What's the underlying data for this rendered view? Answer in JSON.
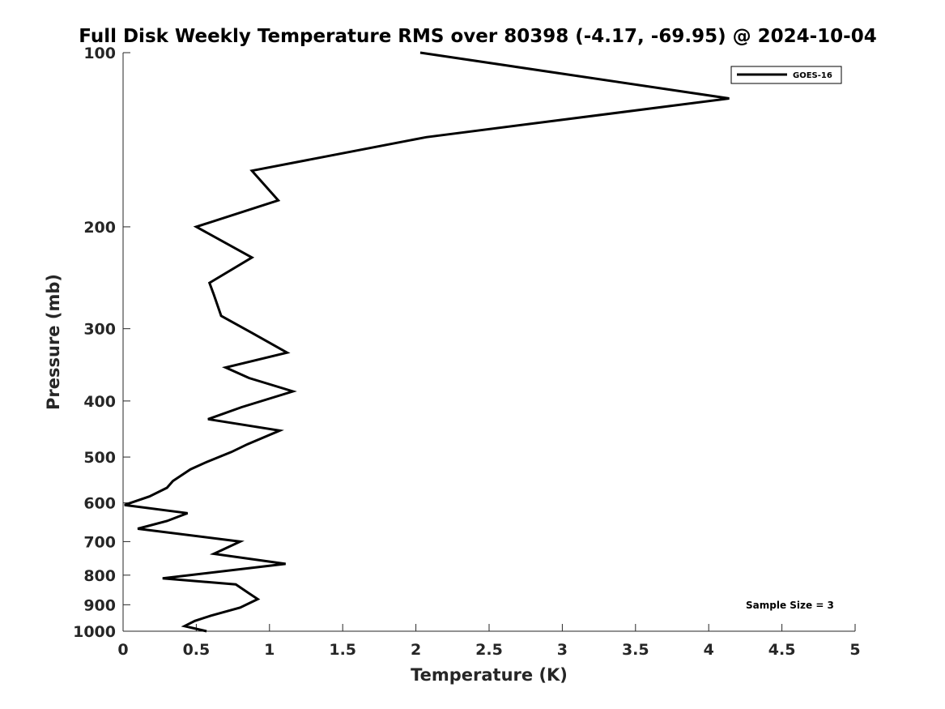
{
  "chart_data": {
    "type": "line",
    "title": "Full Disk Weekly Temperature RMS over 80398 (-4.17, -69.95) @ 2024-10-04",
    "xlabel": "Temperature (K)",
    "ylabel": "Pressure (mb)",
    "xlim": [
      0,
      5
    ],
    "ylim": [
      100,
      1000
    ],
    "y_scale": "log",
    "y_reversed": true,
    "x_ticks": [
      "0",
      "0.5",
      "1",
      "1.5",
      "2",
      "2.5",
      "3",
      "3.5",
      "4",
      "4.5",
      "5"
    ],
    "y_ticks": [
      "100",
      "200",
      "300",
      "400",
      "500",
      "600",
      "700",
      "800",
      "900",
      "1000"
    ],
    "grid": false,
    "legend": {
      "position": "top-right",
      "entries": [
        "GOES-16"
      ]
    },
    "annotation": "Sample Size = 3",
    "series": [
      {
        "name": "GOES-16",
        "color": "#000000",
        "points": [
          [
            2.03,
            100
          ],
          [
            4.14,
            120
          ],
          [
            2.07,
            140
          ],
          [
            0.88,
            160
          ],
          [
            1.06,
            180
          ],
          [
            0.5,
            200
          ],
          [
            0.88,
            226
          ],
          [
            0.59,
            250
          ],
          [
            0.62,
            262
          ],
          [
            0.67,
            285
          ],
          [
            0.88,
            305
          ],
          [
            1.12,
            330
          ],
          [
            0.7,
            350
          ],
          [
            0.86,
            365
          ],
          [
            1.16,
            385
          ],
          [
            0.81,
            410
          ],
          [
            0.58,
            430
          ],
          [
            1.07,
            450
          ],
          [
            0.85,
            475
          ],
          [
            0.74,
            490
          ],
          [
            0.57,
            510
          ],
          [
            0.46,
            525
          ],
          [
            0.34,
            550
          ],
          [
            0.3,
            565
          ],
          [
            0.18,
            585
          ],
          [
            0.01,
            605
          ],
          [
            0.44,
            625
          ],
          [
            0.3,
            645
          ],
          [
            0.1,
            665
          ],
          [
            0.8,
            700
          ],
          [
            0.62,
            735
          ],
          [
            1.11,
            765
          ],
          [
            0.27,
            810
          ],
          [
            0.77,
            830
          ],
          [
            0.86,
            860
          ],
          [
            0.92,
            880
          ],
          [
            0.8,
            910
          ],
          [
            0.6,
            940
          ],
          [
            0.49,
            960
          ],
          [
            0.42,
            980
          ],
          [
            0.57,
            1000
          ]
        ]
      }
    ]
  }
}
